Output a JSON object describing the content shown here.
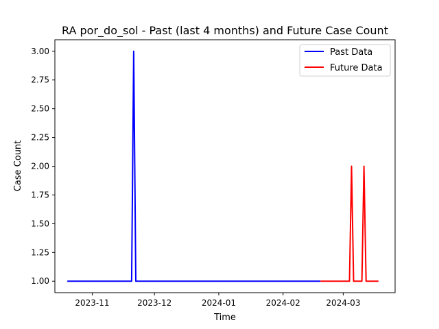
{
  "chart_data": {
    "type": "line",
    "title": "RA por_do_sol - Past (last 4 months) and Future Case Count",
    "xlabel": "Time",
    "ylabel": "Case Count",
    "xlim": [
      "2023-10-14",
      "2024-03-26"
    ],
    "ylim": [
      0.9,
      3.1
    ],
    "xticks": [
      {
        "date": "2023-11-01",
        "label": "2023-11"
      },
      {
        "date": "2023-12-01",
        "label": "2023-12"
      },
      {
        "date": "2024-01-01",
        "label": "2024-01"
      },
      {
        "date": "2024-02-01",
        "label": "2024-02"
      },
      {
        "date": "2024-03-01",
        "label": "2024-03"
      }
    ],
    "yticks": [
      1.0,
      1.25,
      1.5,
      1.75,
      2.0,
      2.25,
      2.5,
      2.75,
      3.0
    ],
    "ytick_labels": [
      "1.00",
      "1.25",
      "1.50",
      "1.75",
      "2.00",
      "2.25",
      "2.50",
      "2.75",
      "3.00"
    ],
    "grid": false,
    "legend_position": "top-right",
    "series": [
      {
        "name": "Past Data",
        "color": "#0000ff",
        "points": [
          {
            "x": "2023-10-20",
            "y": 1
          },
          {
            "x": "2023-11-20",
            "y": 1
          },
          {
            "x": "2023-11-21",
            "y": 3
          },
          {
            "x": "2023-11-22",
            "y": 1
          },
          {
            "x": "2024-02-19",
            "y": 1
          }
        ]
      },
      {
        "name": "Future Data",
        "color": "#ff0000",
        "points": [
          {
            "x": "2024-02-19",
            "y": 1
          },
          {
            "x": "2024-03-04",
            "y": 1
          },
          {
            "x": "2024-03-05",
            "y": 2
          },
          {
            "x": "2024-03-06",
            "y": 1
          },
          {
            "x": "2024-03-10",
            "y": 1
          },
          {
            "x": "2024-03-11",
            "y": 2
          },
          {
            "x": "2024-03-12",
            "y": 1
          },
          {
            "x": "2024-03-18",
            "y": 1
          }
        ]
      }
    ]
  }
}
